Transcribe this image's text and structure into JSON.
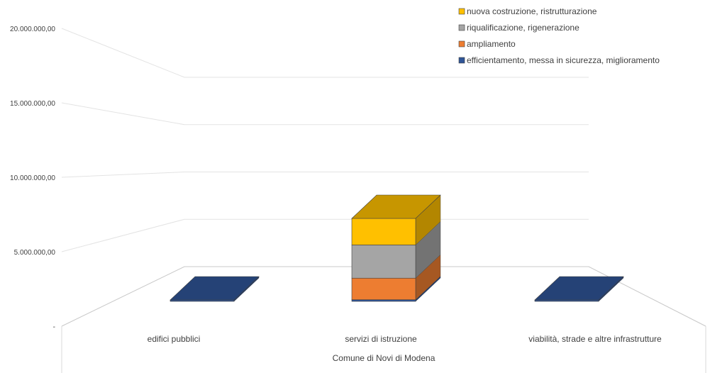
{
  "chart_data": {
    "type": "bar",
    "stacked": true,
    "three_d": true,
    "title": "",
    "xlabel": "Comune di Novi di Modena",
    "ylabel": "",
    "ylim": [
      0,
      20000000
    ],
    "yticks": [
      0,
      5000000,
      10000000,
      15000000,
      20000000
    ],
    "ytick_labels": [
      "-",
      "5.000.000,00",
      "10.000.000,00",
      "15.000.000,00",
      "20.000.000,00"
    ],
    "grid": true,
    "legend_position": "top-right",
    "categories": [
      "edifici pubblici",
      "servizi di istruzione",
      "viabilità, strade e altre infrastrutture"
    ],
    "series": [
      {
        "name": "efficientamento, messa in sicurezza, miglioramento",
        "color": "#2f5597",
        "values": [
          60000,
          100000,
          60000
        ]
      },
      {
        "name": "ampliamento",
        "color": "#ed7d31",
        "values": [
          0,
          1300000,
          0
        ]
      },
      {
        "name": "riqualificazione, rigenerazione",
        "color": "#a5a5a5",
        "values": [
          0,
          2000000,
          0
        ]
      },
      {
        "name": "nuova costruzione, ristrutturazione",
        "color": "#ffc000",
        "values": [
          0,
          1600000,
          0
        ]
      }
    ],
    "legend_order": [
      3,
      2,
      1,
      0
    ]
  }
}
